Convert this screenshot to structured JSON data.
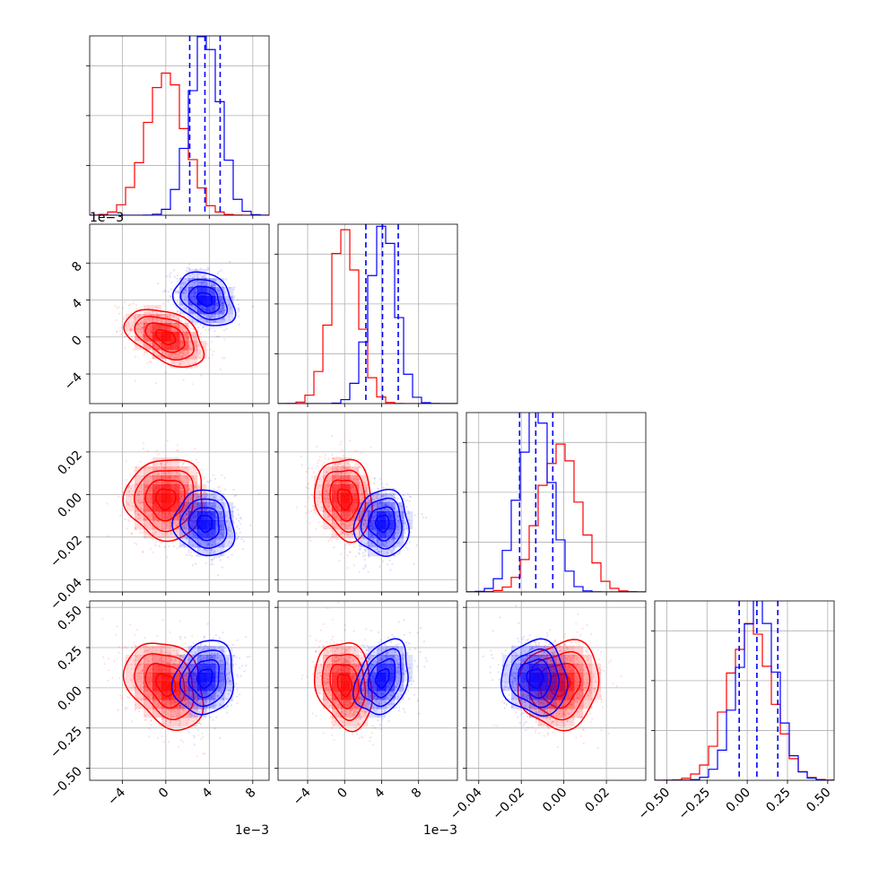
{
  "chart_data": {
    "type": "corner",
    "grid": true,
    "series": [
      {
        "name": "",
        "color": "#ff0000"
      },
      {
        "name": "",
        "color": "#0000ff"
      }
    ],
    "parameters": [
      {
        "index": 0,
        "range": [
          -0.007,
          0.0095
        ]
      },
      {
        "index": 1,
        "range": [
          -0.0072,
          0.0122
        ]
      },
      {
        "index": 2,
        "range": [
          -0.0458,
          0.0385
        ]
      },
      {
        "index": 3,
        "range": [
          -0.575,
          0.54
        ]
      }
    ],
    "ticks": {
      "p0": {
        "values": [
          -0.004,
          0.0,
          0.004,
          0.008
        ],
        "labels": [
          "−4",
          "0",
          "4",
          "8"
        ],
        "offset": "1e−3"
      },
      "p1": {
        "values": [
          -0.004,
          0.0,
          0.004,
          0.008
        ],
        "labels": [
          "−4",
          "0",
          "4",
          "8"
        ],
        "offset": "1e−3"
      },
      "p2": {
        "values": [
          -0.04,
          -0.02,
          0.0,
          0.02
        ],
        "labels": [
          "−0.04",
          "−0.02",
          "0.00",
          "0.02"
        ]
      },
      "p3": {
        "values": [
          -0.5,
          -0.25,
          0.0,
          0.25,
          0.5
        ],
        "labels": [
          "−0.50",
          "−0.25",
          "0.00",
          "0.25",
          "0.50"
        ]
      }
    },
    "quantiles": [
      {
        "param": 0,
        "values": [
          0.0022,
          0.0036,
          0.005
        ],
        "color": "#0000ff"
      },
      {
        "param": 1,
        "values": [
          0.0023,
          0.0041,
          0.0058
        ],
        "color": "#0000ff"
      },
      {
        "param": 2,
        "values": [
          -0.0208,
          -0.0132,
          -0.0052
        ],
        "color": "#0000ff"
      },
      {
        "param": 3,
        "values": [
          -0.05,
          0.06,
          0.19
        ],
        "color": "#0000ff"
      }
    ],
    "distributions": {
      "red": {
        "mean": [
          0.0,
          0.0,
          -0.002,
          0.02
        ],
        "sd": [
          0.0018,
          0.00155,
          0.0095,
          0.135
        ],
        "corr": {
          "0-1": -0.45,
          "0-2": 0.0,
          "0-3": -0.3,
          "1-2": -0.15,
          "1-3": -0.2,
          "2-3": 0.1
        }
      },
      "blue": {
        "mean": [
          0.0036,
          0.0041,
          -0.0135,
          0.06
        ],
        "sd": [
          0.00138,
          0.00145,
          0.0077,
          0.115
        ],
        "corr": {
          "0-1": -0.3,
          "0-2": -0.1,
          "0-3": 0.15,
          "1-2": 0.0,
          "1-3": 0.3,
          "2-3": -0.05
        }
      }
    }
  }
}
